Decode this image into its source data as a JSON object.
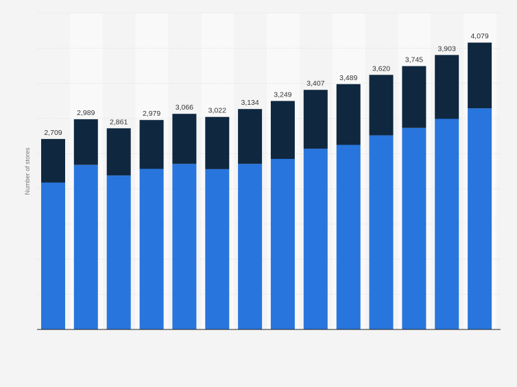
{
  "chart_data": {
    "type": "bar",
    "stacked": true,
    "ylabel": "Number of stores",
    "ylim": [
      0,
      4500
    ],
    "grid": true,
    "gridline_step": 500,
    "totals": [
      2709,
      2989,
      2861,
      2979,
      3066,
      3022,
      3134,
      3249,
      3407,
      3489,
      3620,
      3745,
      3903,
      4079
    ],
    "total_labels": [
      "2,709",
      "2,989",
      "2,861",
      "2,979",
      "3,066",
      "3,022",
      "3,134",
      "3,249",
      "3,407",
      "3,489",
      "3,620",
      "3,745",
      "3,903",
      "4,079"
    ],
    "series": [
      {
        "color": "#2876dd",
        "values": [
          2090,
          2340,
          2190,
          2285,
          2355,
          2280,
          2355,
          2425,
          2570,
          2625,
          2760,
          2865,
          2995,
          3145
        ]
      },
      {
        "color": "#0f2840",
        "values": [
          619,
          649,
          671,
          694,
          711,
          742,
          779,
          824,
          837,
          864,
          860,
          880,
          908,
          934
        ]
      }
    ]
  }
}
